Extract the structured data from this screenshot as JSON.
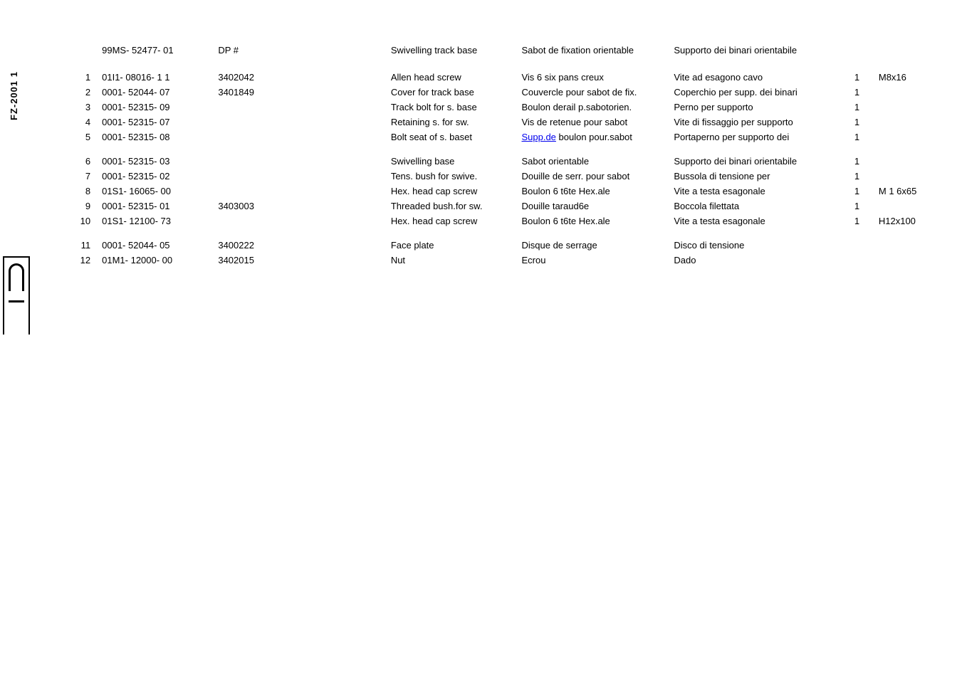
{
  "side_label": "FZ-2001 1",
  "header": {
    "part_no": "99MS- 52477- 01",
    "dp_label": "DP #",
    "en": "Swivelling track base",
    "fr": "Sabot de fixation orientable",
    "it": "Supporto dei binari orientabile"
  },
  "rows": [
    {
      "idx": "1",
      "part": "01I1- 08016- 1 1",
      "dp": "3402042",
      "en": "Allen head screw",
      "fr": "Vis 6 six pans creux",
      "it": "Vite ad esagono cavo",
      "qty": "1",
      "size": "M8x16"
    },
    {
      "idx": "2",
      "part": "0001- 52044- 07",
      "dp": "3401849",
      "en": "Cover for track base",
      "fr": "Couvercle pour sabot de fix.",
      "it": "Coperchio per supp. dei binari",
      "qty": "1",
      "size": ""
    },
    {
      "idx": "3",
      "part": "0001- 52315- 09",
      "dp": "",
      "en": "Track bolt for s. base",
      "fr": "Boulon derail p.sabotorien.",
      "it": "Perno per supporto",
      "qty": "1",
      "size": ""
    },
    {
      "idx": "4",
      "part": "0001- 52315- 07",
      "dp": "",
      "en": "Retaining s. for sw.",
      "fr": "Vis de retenue pour sabot",
      "it": "Vite di fissaggio per supporto",
      "qty": "1",
      "size": ""
    },
    {
      "idx": "5",
      "part": "0001- 52315- 08",
      "dp": "",
      "en": "Bolt seat of s. baset",
      "fr_pre": "",
      "fr_link": "Supp.de",
      "fr_post": " boulon pour.sabot",
      "it": "Portaperno per supporto dei",
      "qty": "1",
      "size": ""
    },
    {
      "idx": "6",
      "part": "0001- 52315- 03",
      "dp": "",
      "en": "Swivelling base",
      "fr": "Sabot orientable",
      "it": "Supporto dei binari orientabile",
      "qty": "1",
      "size": "",
      "gap": true
    },
    {
      "idx": "7",
      "part": "0001- 52315- 02",
      "dp": "",
      "en": "Tens. bush for swive.",
      "fr": "Douille de serr. pour sabot",
      "it": "Bussola di tensione per",
      "qty": "1",
      "size": ""
    },
    {
      "idx": "8",
      "part": "01S1- 16065- 00",
      "dp": "",
      "en": "Hex. head cap screw",
      "fr": "Boulon 6 t6te Hex.ale",
      "it": "Vite a testa esagonale",
      "qty": "1",
      "size": "M 1 6x65"
    },
    {
      "idx": "9",
      "part": "0001- 52315- 01",
      "dp": "3403003",
      "en": "Threaded bush.for sw.",
      "fr": "Douille taraud6e",
      "it": "Boccola filettata",
      "qty": "1",
      "size": ""
    },
    {
      "idx": "10",
      "part": "01S1- 12100- 73",
      "dp": "",
      "en": "Hex. head cap screw",
      "fr": "Boulon 6 t6te Hex.ale",
      "it": "Vite a testa esagonale",
      "qty": "1",
      "size": "H12x100"
    },
    {
      "idx": "11",
      "part": "0001- 52044- 05",
      "dp": "3400222",
      "en": "Face plate",
      "fr": "Disque de serrage",
      "it": "Disco di tensione",
      "qty": "",
      "size": "",
      "gap": true
    },
    {
      "idx": "12",
      "part": "01M1- 12000- 00",
      "dp": "3402015",
      "en": "Nut",
      "fr": "Ecrou",
      "it": "Dado",
      "qty": "",
      "size": ""
    }
  ],
  "colors": {
    "text": "#000000",
    "background": "#ffffff",
    "link": "#0000ee"
  },
  "typography": {
    "base_fontsize_pt": 10,
    "font_family": "Arial"
  }
}
